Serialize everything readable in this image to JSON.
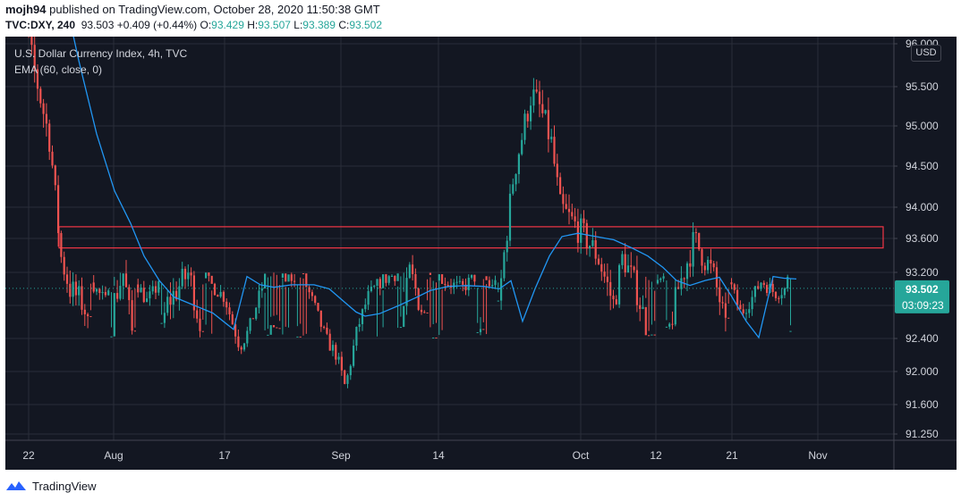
{
  "header": {
    "author": "mojh94",
    "published_text": "published on TradingView.com, October 28, 2020 11:50:38 GMT",
    "symbol": "TVC:DXY, 240",
    "last": "93.503",
    "change": "+0.409 (+0.44%)",
    "o_label": "O:",
    "o_value": "93.429",
    "h_label": "H:",
    "h_value": "93.507",
    "l_label": "L:",
    "l_value": "93.389",
    "c_label": "C:",
    "c_value": "93.502"
  },
  "legend": {
    "title": "U.S. Dollar Currency Index, 4h, TVC",
    "indicator": "EMA (60, close, 0)"
  },
  "currency_button": "USD",
  "footer": {
    "brand": "TradingView"
  },
  "colors": {
    "background": "#131722",
    "up": "#26a69a",
    "down": "#ef5350",
    "ema": "#2196f3",
    "zone": "#f23645",
    "grid": "#2a2e39",
    "text": "#d1d4dc"
  },
  "chart_data": {
    "type": "candlestick",
    "title": "U.S. Dollar Currency Index, 4h, TVC",
    "symbol": "TVC:DXY",
    "interval": "240",
    "y_ticks": [
      "96.000",
      "95.500",
      "95.000",
      "94.500",
      "94.000",
      "93.600",
      "93.200",
      "92.800",
      "92.400",
      "92.000",
      "91.600",
      "91.250"
    ],
    "x_ticks": [
      "22",
      "Aug",
      "17",
      "Sep",
      "14",
      "Oct",
      "12",
      "21",
      "Nov"
    ],
    "last_price_label": "93.502",
    "countdown_label": "03:09:23",
    "last_price": 93.502,
    "resistance_zone": [
      93.75,
      93.88
    ],
    "ema_period": 60,
    "ema_path": [
      [
        0,
        97.3
      ],
      [
        18,
        96.5
      ],
      [
        42,
        95.9
      ],
      [
        62,
        95.4
      ],
      [
        82,
        94.9
      ],
      [
        102,
        94.45
      ],
      [
        122,
        94.1
      ],
      [
        140,
        93.9
      ],
      [
        155,
        93.7
      ],
      [
        172,
        93.55
      ],
      [
        188,
        93.45
      ],
      [
        210,
        93.4
      ],
      [
        232,
        93.35
      ],
      [
        255,
        93.25
      ],
      [
        270,
        93.15
      ],
      [
        285,
        93.05
      ],
      [
        300,
        93.02
      ],
      [
        320,
        93.05
      ],
      [
        345,
        93.05
      ],
      [
        362,
        93.0
      ],
      [
        378,
        92.85
      ],
      [
        392,
        92.72
      ],
      [
        402,
        92.67
      ],
      [
        418,
        92.7
      ],
      [
        440,
        92.8
      ],
      [
        460,
        92.9
      ],
      [
        475,
        92.98
      ],
      [
        495,
        93.03
      ],
      [
        515,
        93.04
      ],
      [
        535,
        93.03
      ],
      [
        552,
        93.0
      ],
      [
        565,
        93.1
      ],
      [
        578,
        93.3
      ],
      [
        592,
        93.5
      ],
      [
        608,
        93.7
      ],
      [
        622,
        93.82
      ],
      [
        640,
        93.84
      ],
      [
        660,
        93.82
      ],
      [
        680,
        93.8
      ],
      [
        700,
        93.75
      ],
      [
        718,
        93.7
      ],
      [
        735,
        93.63
      ],
      [
        750,
        93.55
      ],
      [
        765,
        93.52
      ],
      [
        782,
        93.55
      ],
      [
        798,
        93.57
      ],
      [
        812,
        93.45
      ],
      [
        828,
        93.3
      ],
      [
        842,
        93.2
      ],
      [
        858,
        93.15
      ],
      [
        870,
        93.13
      ],
      [
        884,
        93.12
      ]
    ]
  }
}
